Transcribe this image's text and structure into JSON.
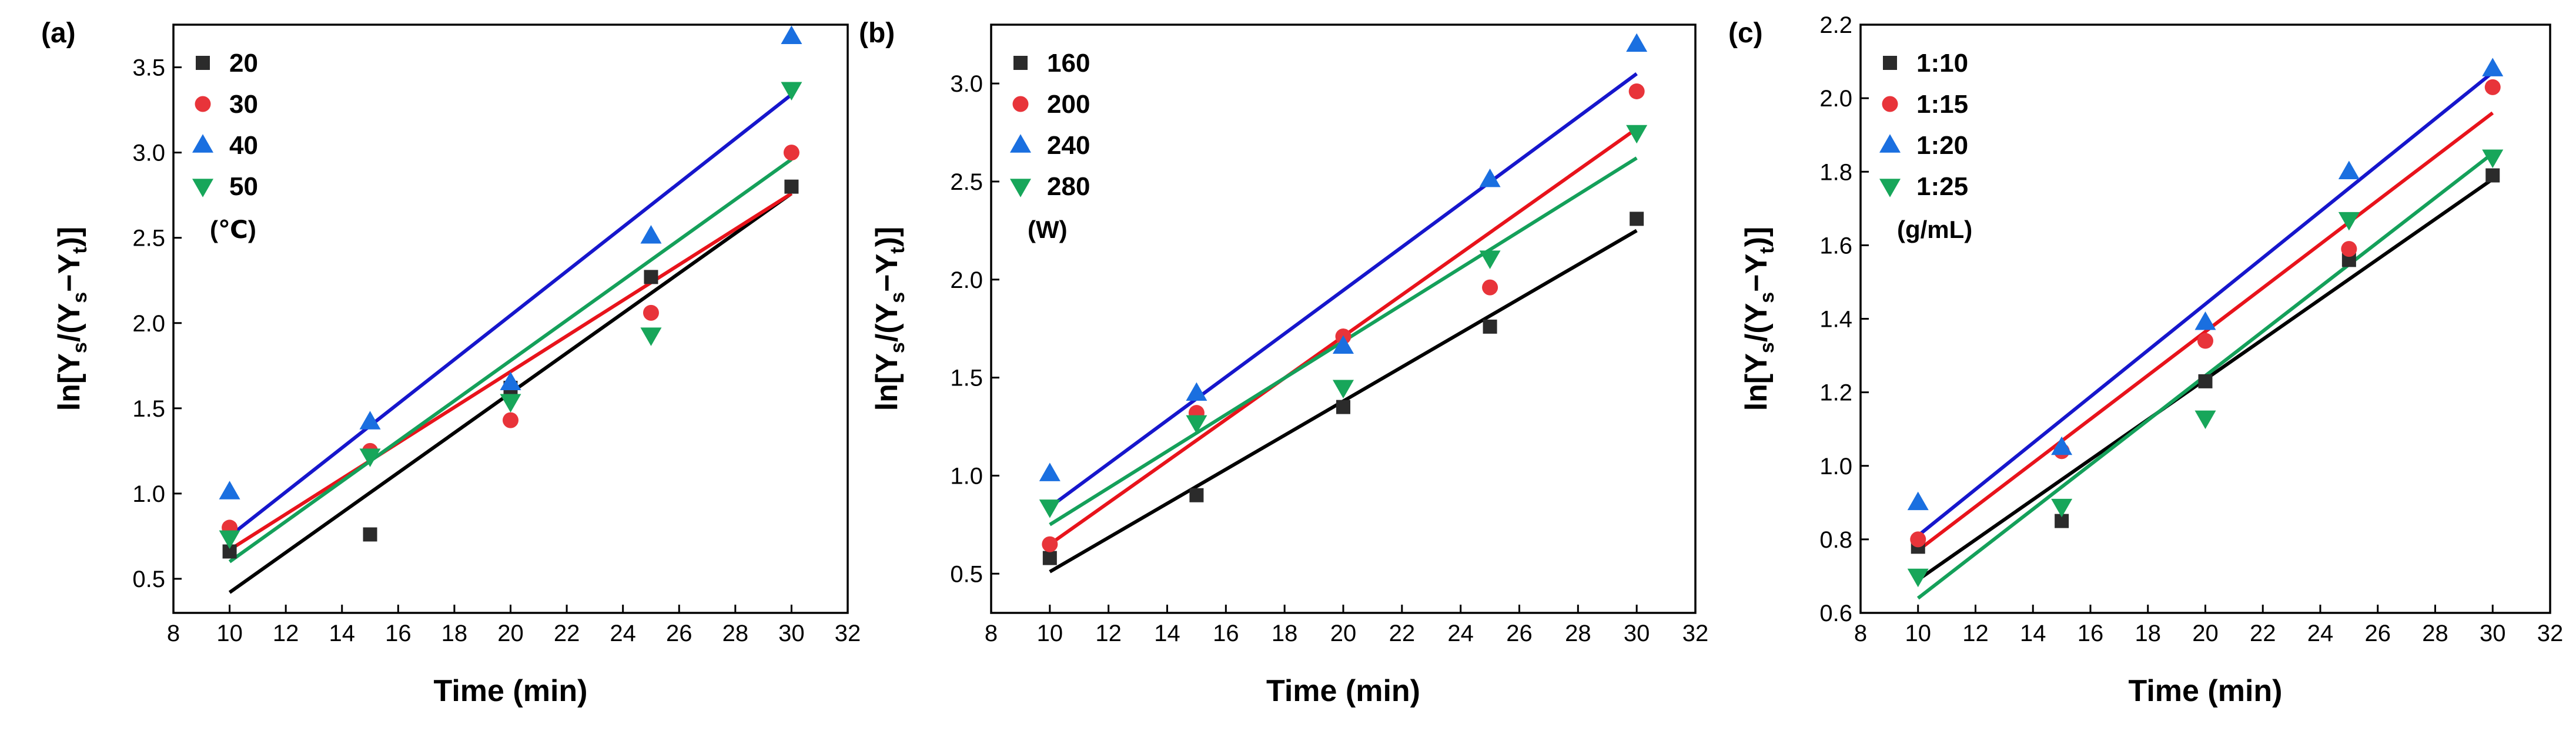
{
  "colors": {
    "series": [
      "#2b2b2b",
      "#e8343a",
      "#1a6fe0",
      "#17a65a"
    ],
    "fit_lines": [
      "#000000",
      "#e8131b",
      "#1616cc",
      "#14a05a"
    ]
  },
  "chart_data": [
    {
      "type": "scatter",
      "panel_label": "(a)",
      "xlabel": "Time (min)",
      "ylabel": {
        "prefix": "ln[Y",
        "sub1": "s",
        "mid": "/(Y",
        "sub2": "s",
        "dash": "−Y",
        "sub3": "t",
        "suffix": ")]"
      },
      "xlim": [
        8,
        32
      ],
      "ylim": [
        0.3,
        3.75
      ],
      "xticks": [
        8,
        10,
        12,
        14,
        16,
        18,
        20,
        22,
        24,
        26,
        28,
        30,
        32
      ],
      "yticks": [
        0.5,
        1.0,
        1.5,
        2.0,
        2.5,
        3.0,
        3.5
      ],
      "ytick_labels": [
        "0.5",
        "1.0",
        "1.5",
        "2.0",
        "2.5",
        "3.0",
        "3.5"
      ],
      "legend_position": "top-left",
      "legend_unit": "(℃)",
      "x": [
        10,
        15,
        20,
        25,
        30
      ],
      "series": [
        {
          "name": "20",
          "marker": "square",
          "values": [
            0.66,
            0.76,
            1.62,
            2.27,
            2.8
          ],
          "fit": [
            0.42,
            2.76
          ]
        },
        {
          "name": "30",
          "marker": "circle",
          "values": [
            0.8,
            1.25,
            1.43,
            2.06,
            3.0
          ],
          "fit": [
            0.67,
            2.76
          ]
        },
        {
          "name": "40",
          "marker": "triangle-up",
          "values": [
            1.01,
            1.42,
            1.65,
            2.51,
            3.68
          ],
          "fit": [
            0.75,
            3.34
          ]
        },
        {
          "name": "50",
          "marker": "triangle-down",
          "values": [
            0.74,
            1.22,
            1.54,
            1.93,
            3.37
          ],
          "fit": [
            0.6,
            2.96
          ]
        }
      ]
    },
    {
      "type": "scatter",
      "panel_label": "(b)",
      "xlabel": "Time (min)",
      "ylabel": {
        "prefix": "ln[Y",
        "sub1": "s",
        "mid": "/(Y",
        "sub2": "s",
        "dash": "−Y",
        "sub3": "t",
        "suffix": ")]"
      },
      "xlim": [
        8,
        32
      ],
      "ylim": [
        0.3,
        3.3
      ],
      "xticks": [
        8,
        10,
        12,
        14,
        16,
        18,
        20,
        22,
        24,
        26,
        28,
        30,
        32
      ],
      "yticks": [
        0.5,
        1.0,
        1.5,
        2.0,
        2.5,
        3.0
      ],
      "ytick_labels": [
        "0.5",
        "1.0",
        "1.5",
        "2.0",
        "2.5",
        "3.0"
      ],
      "legend_position": "top-left",
      "legend_unit": "(W)",
      "x": [
        10,
        15,
        20,
        25,
        30
      ],
      "series": [
        {
          "name": "160",
          "marker": "square",
          "values": [
            0.58,
            0.9,
            1.35,
            1.76,
            2.31
          ],
          "fit": [
            0.51,
            2.25
          ]
        },
        {
          "name": "200",
          "marker": "circle",
          "values": [
            0.65,
            1.32,
            1.71,
            1.96,
            2.96
          ],
          "fit": [
            0.65,
            2.77
          ]
        },
        {
          "name": "240",
          "marker": "triangle-up",
          "values": [
            1.01,
            1.42,
            1.66,
            2.51,
            3.2
          ],
          "fit": [
            0.84,
            3.05
          ]
        },
        {
          "name": "280",
          "marker": "triangle-down",
          "values": [
            0.84,
            1.27,
            1.45,
            2.11,
            2.75
          ],
          "fit": [
            0.75,
            2.62
          ]
        }
      ]
    },
    {
      "type": "scatter",
      "panel_label": "(c)",
      "xlabel": "Time (min)",
      "ylabel": {
        "prefix": "ln[Y",
        "sub1": "s",
        "mid": "/(Y",
        "sub2": "s",
        "dash": "−Y",
        "sub3": "t",
        "suffix": ")]"
      },
      "xlim": [
        8,
        32
      ],
      "ylim": [
        0.6,
        2.2
      ],
      "xticks": [
        8,
        10,
        12,
        14,
        16,
        18,
        20,
        22,
        24,
        26,
        28,
        30,
        32
      ],
      "yticks": [
        0.6,
        0.8,
        1.0,
        1.2,
        1.4,
        1.6,
        1.8,
        2.0,
        2.2
      ],
      "ytick_labels": [
        "0.6",
        "0.8",
        "1.0",
        "1.2",
        "1.4",
        "1.6",
        "1.8",
        "2.0",
        "2.2"
      ],
      "legend_position": "top-left",
      "legend_unit": "(g/mL)",
      "x": [
        10,
        15,
        20,
        25,
        30
      ],
      "series": [
        {
          "name": "1:10",
          "marker": "square",
          "values": [
            0.78,
            0.85,
            1.23,
            1.56,
            1.79
          ],
          "fit": [
            0.69,
            1.78
          ]
        },
        {
          "name": "1:15",
          "marker": "circle",
          "values": [
            0.8,
            1.04,
            1.34,
            1.59,
            2.03
          ],
          "fit": [
            0.77,
            1.96
          ]
        },
        {
          "name": "1:20",
          "marker": "triangle-up",
          "values": [
            0.9,
            1.05,
            1.39,
            1.8,
            2.08
          ],
          "fit": [
            0.81,
            2.07
          ]
        },
        {
          "name": "1:25",
          "marker": "triangle-down",
          "values": [
            0.7,
            0.89,
            1.13,
            1.67,
            1.84
          ],
          "fit": [
            0.64,
            1.85
          ]
        }
      ]
    }
  ]
}
